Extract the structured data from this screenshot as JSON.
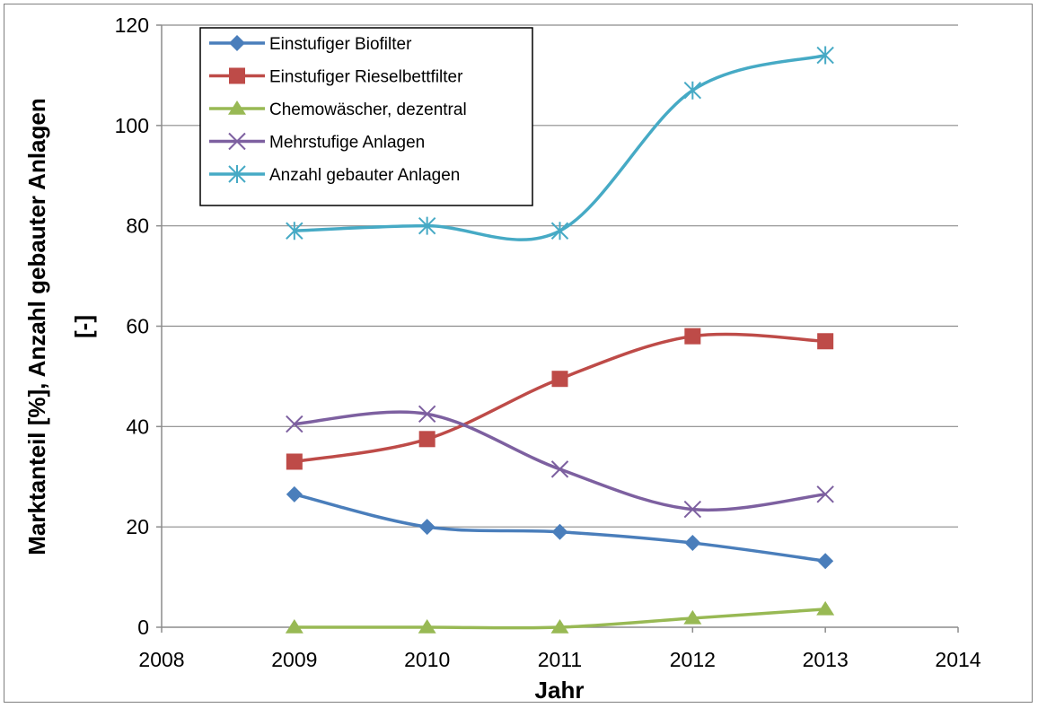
{
  "chart_data": {
    "type": "line",
    "xlabel": "Jahr",
    "ylabel_line1": "Marktanteil [%], Anzahl gebauter Anlagen",
    "ylabel_line2": "[-]",
    "xlim": [
      2008,
      2014
    ],
    "ylim": [
      0,
      120
    ],
    "xticks": [
      2008,
      2009,
      2010,
      2011,
      2012,
      2013,
      2014
    ],
    "yticks": [
      0,
      20,
      40,
      60,
      80,
      100,
      120
    ],
    "grid": "horizontal",
    "legend_position": "top-left",
    "x": [
      2009,
      2010,
      2011,
      2012,
      2013
    ],
    "series": [
      {
        "name": "Einstufiger Biofilter",
        "values": [
          26.5,
          20,
          19,
          16.8,
          13.2
        ],
        "color": "#4a7ebb",
        "marker": "diamond"
      },
      {
        "name": "Einstufiger Rieselbettfilter",
        "values": [
          33,
          37.5,
          49.5,
          58,
          57
        ],
        "color": "#be4b48",
        "marker": "square"
      },
      {
        "name": "Chemowäscher, dezentral",
        "values": [
          0,
          0,
          0,
          1.8,
          3.6
        ],
        "color": "#98b954",
        "marker": "triangle"
      },
      {
        "name": "Mehrstufige Anlagen",
        "values": [
          40.5,
          42.5,
          31.5,
          23.5,
          26.5
        ],
        "color": "#7d60a0",
        "marker": "x"
      },
      {
        "name": "Anzahl gebauter Anlagen",
        "values": [
          79,
          80,
          79,
          107,
          114
        ],
        "color": "#46aac5",
        "marker": "star"
      }
    ]
  }
}
